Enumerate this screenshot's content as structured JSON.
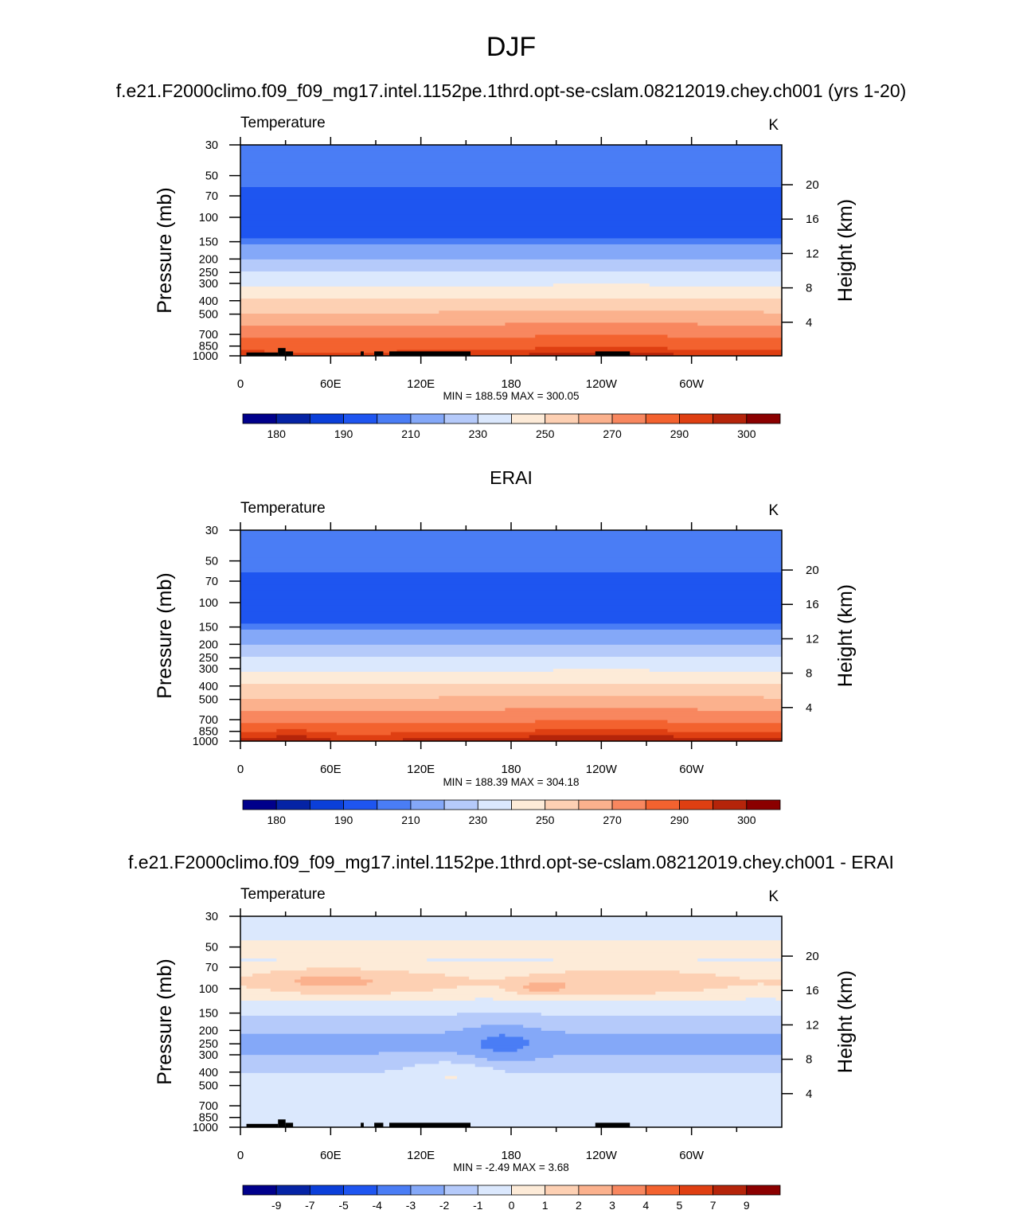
{
  "figure": {
    "title": "DJF"
  },
  "panels": [
    {
      "title": "f.e21.F2000climo.f09_f09_mg17.intel.1152pe.1thrd.opt-se-cslam.08212019.chey.ch001 (yrs 1-20)",
      "field": "Temperature",
      "units": "K",
      "stats": "MIN = 188.59  MAX = 300.05",
      "kind": "abs",
      "pattern": "model"
    },
    {
      "title": "ERAI",
      "field": "Temperature",
      "units": "K",
      "stats": "MIN = 188.39  MAX = 304.18",
      "kind": "abs",
      "pattern": "obs"
    },
    {
      "title": "f.e21.F2000climo.f09_f09_mg17.intel.1152pe.1thrd.opt-se-cslam.08212019.chey.ch001 - ERAI",
      "field": "Temperature",
      "units": "K",
      "stats": "MIN =  -2.49  MAX =   3.68",
      "kind": "diff",
      "pattern": "diff"
    }
  ],
  "chart_data": {
    "type": "heatmap",
    "x_axis": {
      "label": "",
      "ticks": [
        "0",
        "60E",
        "120E",
        "180",
        "120W",
        "60W"
      ],
      "range_degrees_east": [
        0,
        360
      ]
    },
    "y_axis_left": {
      "label": "Pressure (mb)",
      "ticks": [
        30,
        50,
        70,
        100,
        150,
        200,
        250,
        300,
        400,
        500,
        700,
        850,
        1000
      ],
      "scale": "log",
      "range": [
        30,
        1000
      ]
    },
    "y_axis_right": {
      "label": "Height (km)",
      "ticks": [
        4,
        8,
        12,
        16,
        20
      ]
    },
    "colorbars": {
      "abs": {
        "labels": [
          "180",
          "190",
          "210",
          "230",
          "250",
          "270",
          "290",
          "300"
        ],
        "levels": [
          175,
          180,
          185,
          190,
          200,
          210,
          220,
          230,
          240,
          250,
          260,
          270,
          280,
          290,
          295,
          300,
          305
        ],
        "colors": [
          "#00008b",
          "#0523a5",
          "#0b3fd9",
          "#1e55f0",
          "#4a7df5",
          "#84a8f8",
          "#b5cafa",
          "#dbe8fd",
          "#fdebd8",
          "#fdd0b3",
          "#fbb18d",
          "#f8875f",
          "#f3622f",
          "#df3f12",
          "#b5240a",
          "#8b0000"
        ]
      },
      "diff": {
        "labels": [
          "-9",
          "-7",
          "-5",
          "-4",
          "-3",
          "-2",
          "-1",
          "0",
          "1",
          "2",
          "3",
          "4",
          "5",
          "7",
          "9"
        ],
        "levels": [
          -11,
          -9,
          -7,
          -5,
          -4,
          -3,
          -2,
          -1,
          0,
          1,
          2,
          3,
          4,
          5,
          7,
          9,
          11
        ],
        "colors": [
          "#00008b",
          "#0523a5",
          "#0b3fd9",
          "#1e55f0",
          "#4a7df5",
          "#84a8f8",
          "#b5cafa",
          "#dbe8fd",
          "#fdebd8",
          "#fdd0b3",
          "#fbb18d",
          "#f8875f",
          "#f3622f",
          "#df3f12",
          "#b5240a",
          "#8b0000"
        ]
      }
    },
    "min_max": [
      {
        "min": 188.59,
        "max": 300.05
      },
      {
        "min": 188.39,
        "max": 304.18
      },
      {
        "min": -2.49,
        "max": 3.68
      }
    ]
  }
}
